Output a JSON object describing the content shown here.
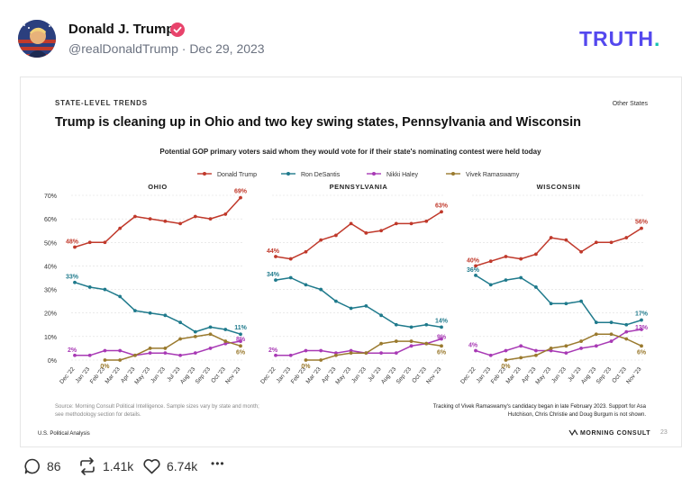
{
  "post": {
    "author_name": "Donald J. Trump",
    "handle": "@realDonaldTrump",
    "separator": "·",
    "date": "Dec 29, 2023",
    "brand": "TRUTH",
    "brand_dot": ".",
    "verified_color": "#e8436b",
    "brand_color": "#5448ee",
    "accent_color": "#17c3b2"
  },
  "infographic": {
    "kicker": "STATE-LEVEL TRENDS",
    "corner_label": "Other States",
    "title": "Trump is cleaning up in Ohio and two key swing states, Pennsylvania and Wisconsin",
    "subtitle": "Potential GOP primary voters said whom they would vote for if their state's nominating contest were held today",
    "footnote_left_1": "Source: Morning Consult Political Intelligence. Sample sizes vary by state and month;",
    "footnote_left_2": "see methodology section for details.",
    "footnote_right_1": "Tracking of Vivek Ramaswamy's candidacy began in late February 2023. Support for Asa",
    "footnote_right_2": "Hutchison, Chris Christie and Doug Burgum is not shown.",
    "publisher_left": "U.S. Political Analysis",
    "publisher_right": "MORNING CONSULT",
    "page_number": "23"
  },
  "actions": {
    "replies": "86",
    "retruths": "1.41k",
    "likes": "6.74k",
    "more": "•••"
  },
  "chart_data": {
    "type": "line",
    "title": "Trump is cleaning up in Ohio and two key swing states, Pennsylvania and Wisconsin",
    "ylabel": "",
    "ylim": [
      0,
      70
    ],
    "yticks": [
      "0%",
      "10%",
      "20%",
      "30%",
      "40%",
      "50%",
      "60%",
      "70%"
    ],
    "categories": [
      "Dec '22",
      "Jan '23",
      "Feb '23",
      "Mar '23",
      "Apr '23",
      "May '23",
      "Jun '23",
      "Jul '23",
      "Aug '23",
      "Sep '23",
      "Oct '23",
      "Nov '23"
    ],
    "legend": [
      {
        "name": "Donald Trump",
        "color": "#c0392b"
      },
      {
        "name": "Ron DeSantis",
        "color": "#1f7a8c"
      },
      {
        "name": "Nikki Haley",
        "color": "#a83ab5"
      },
      {
        "name": "Vivek Ramaswamy",
        "color": "#9a7a2e"
      }
    ],
    "panels": [
      {
        "state": "OHIO",
        "series": [
          {
            "name": "Donald Trump",
            "values": [
              48,
              50,
              50,
              56,
              61,
              60,
              59,
              58,
              61,
              60,
              62,
              69
            ],
            "start_label": "48%",
            "end_label": "69%"
          },
          {
            "name": "Ron DeSantis",
            "values": [
              33,
              31,
              30,
              27,
              21,
              20,
              19,
              16,
              12,
              14,
              13,
              11
            ],
            "start_label": "33%",
            "end_label": "11%"
          },
          {
            "name": "Nikki Haley",
            "values": [
              2,
              2,
              4,
              4,
              2,
              3,
              3,
              2,
              3,
              5,
              7,
              8
            ],
            "start_label": "2%",
            "end_label": "8%"
          },
          {
            "name": "Vivek Ramaswamy",
            "values": [
              null,
              null,
              0,
              0,
              2,
              5,
              5,
              9,
              10,
              11,
              8,
              6
            ],
            "start_label": "0%",
            "end_label": "6%"
          }
        ]
      },
      {
        "state": "PENNSYLVANIA",
        "series": [
          {
            "name": "Donald Trump",
            "values": [
              44,
              43,
              46,
              51,
              53,
              58,
              54,
              55,
              58,
              58,
              59,
              63
            ],
            "start_label": "44%",
            "end_label": "63%"
          },
          {
            "name": "Ron DeSantis",
            "values": [
              34,
              35,
              32,
              30,
              25,
              22,
              23,
              19,
              15,
              14,
              15,
              14
            ],
            "start_label": "34%",
            "end_label": "14%"
          },
          {
            "name": "Nikki Haley",
            "values": [
              2,
              2,
              4,
              4,
              3,
              4,
              3,
              3,
              3,
              6,
              7,
              9
            ],
            "start_label": "2%",
            "end_label": "9%"
          },
          {
            "name": "Vivek Ramaswamy",
            "values": [
              null,
              null,
              0,
              0,
              2,
              3,
              3,
              7,
              8,
              8,
              7,
              6
            ],
            "start_label": "0%",
            "end_label": "6%"
          }
        ]
      },
      {
        "state": "WISCONSIN",
        "series": [
          {
            "name": "Donald Trump",
            "values": [
              40,
              42,
              44,
              43,
              45,
              52,
              51,
              46,
              50,
              50,
              52,
              56
            ],
            "start_label": "40%",
            "end_label": "56%"
          },
          {
            "name": "Ron DeSantis",
            "values": [
              36,
              32,
              34,
              35,
              31,
              24,
              24,
              25,
              16,
              16,
              15,
              17
            ],
            "start_label": "36%",
            "end_label": "17%"
          },
          {
            "name": "Nikki Haley",
            "values": [
              4,
              2,
              4,
              6,
              4,
              4,
              3,
              5,
              6,
              8,
              12,
              13
            ],
            "start_label": "4%",
            "end_label": "13%"
          },
          {
            "name": "Vivek Ramaswamy",
            "values": [
              null,
              null,
              0,
              1,
              2,
              5,
              6,
              8,
              11,
              11,
              9,
              6
            ],
            "start_label": "0%",
            "end_label": "6%"
          }
        ]
      }
    ]
  }
}
